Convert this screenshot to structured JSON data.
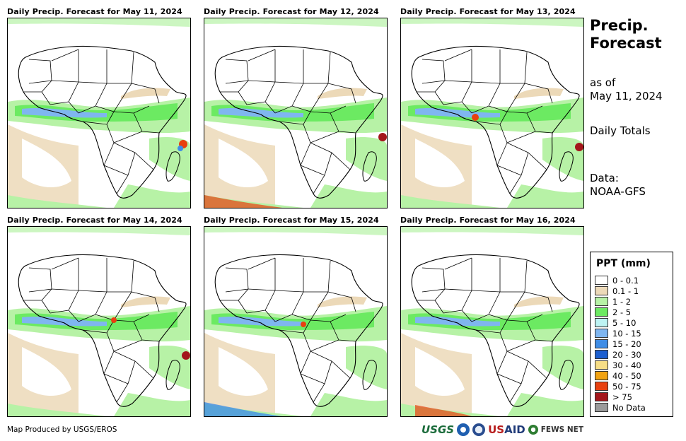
{
  "panels": [
    {
      "title": "Daily Precip. Forecast for May 11, 2024"
    },
    {
      "title": "Daily Precip. Forecast for May 12, 2024"
    },
    {
      "title": "Daily Precip. Forecast for May 13, 2024"
    },
    {
      "title": "Daily Precip. Forecast for May 14, 2024"
    },
    {
      "title": "Daily Precip. Forecast for May 15, 2024"
    },
    {
      "title": "Daily Precip. Forecast for May 16, 2024"
    }
  ],
  "side": {
    "title_line1": "Precip.",
    "title_line2": "Forecast",
    "as_of_label": "as of",
    "as_of_date": "May 11, 2024",
    "totals": "Daily Totals",
    "data_label": "Data:",
    "data_source": "NOAA-GFS"
  },
  "legend": {
    "title": "PPT (mm)",
    "items": [
      {
        "label": "0 - 0.1",
        "color": "#ffffff"
      },
      {
        "label": "0.1 - 1",
        "color": "#ecd9b8"
      },
      {
        "label": "1 - 2",
        "color": "#b7f2a6"
      },
      {
        "label": "2 - 5",
        "color": "#6cea62"
      },
      {
        "label": "5 - 10",
        "color": "#bdf3f3"
      },
      {
        "label": "10 - 15",
        "color": "#7fb6f0"
      },
      {
        "label": "15 - 20",
        "color": "#3f8de6"
      },
      {
        "label": "20 - 30",
        "color": "#1c5fd0"
      },
      {
        "label": "30 - 40",
        "color": "#f7de86"
      },
      {
        "label": "40 - 50",
        "color": "#f2a312"
      },
      {
        "label": "50 - 75",
        "color": "#e8400f"
      },
      {
        "label": "> 75",
        "color": "#a3161b"
      },
      {
        "label": "No Data",
        "color": "#9b9b9b"
      }
    ]
  },
  "footer": {
    "credit": "Map Produced by USGS/EROS",
    "logo_usgs": "USGS",
    "logo_usaid_us": "US",
    "logo_usaid_aid": "AID",
    "logo_fews": "FEWS NET"
  }
}
